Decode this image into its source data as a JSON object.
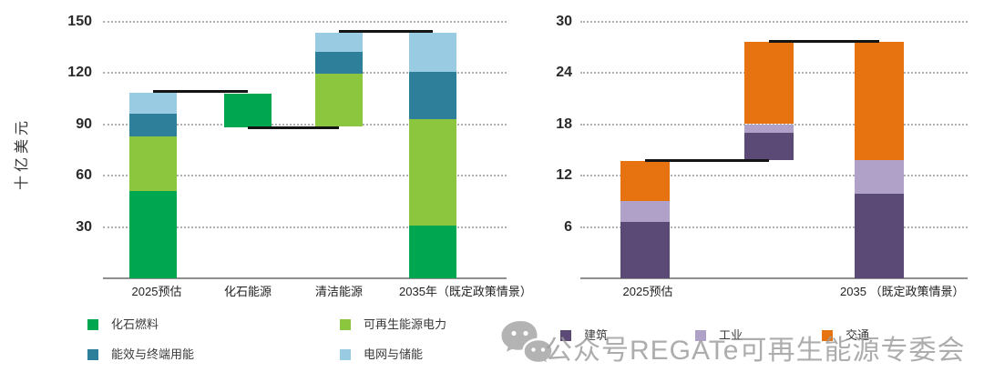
{
  "page": {
    "background": "#ffffff"
  },
  "watermark": {
    "icon": "wechat-icon",
    "text": "公众号REGATe可再生能源专委会",
    "color": "#9c9c9c"
  },
  "chart_data": [
    {
      "type": "bar",
      "subtype": "stacked-waterfall",
      "title": "",
      "ylabel": "十亿美元",
      "xlabel": "",
      "ylim": [
        0,
        150
      ],
      "yticks": [
        30,
        60,
        90,
        120,
        150
      ],
      "grid": "dotted horizontal gridlines",
      "legend_position": "below chart, 2 columns",
      "categories": [
        "2025预估",
        "化石能源",
        "清洁能源",
        "2035年（既定政策情景）"
      ],
      "series": [
        {
          "name": "化石燃料",
          "color": "#00A650"
        },
        {
          "name": "可再生能源电力",
          "color": "#8CC63F"
        },
        {
          "name": "能效与终端用能",
          "color": "#2E7F99"
        },
        {
          "name": "电网与储能",
          "color": "#99CCE3"
        }
      ],
      "bars": [
        {
          "category": "2025预估",
          "base": 0,
          "top": 108.5,
          "segments": [
            {
              "series": "化石燃料",
              "value": 51
            },
            {
              "series": "可再生能源电力",
              "value": 32
            },
            {
              "series": "能效与终端用能",
              "value": 13
            },
            {
              "series": "电网与储能",
              "value": 12.5
            }
          ]
        },
        {
          "category": "化石能源",
          "base": 88,
          "top": 108,
          "segments": [
            {
              "series": "化石燃料",
              "value": 20
            }
          ]
        },
        {
          "category": "清洁能源",
          "base": 88.5,
          "top": 143.5,
          "segments": [
            {
              "series": "可再生能源电力",
              "value": 31
            },
            {
              "series": "能效与终端用能",
              "value": 12.5
            },
            {
              "series": "电网与储能",
              "value": 11.5
            }
          ]
        },
        {
          "category": "2035年（既定政策情景）",
          "base": 0,
          "top": 143.5,
          "segments": [
            {
              "series": "化石燃料",
              "value": 31
            },
            {
              "series": "可再生能源电力",
              "value": 62
            },
            {
              "series": "能效与终端用能",
              "value": 27.5
            },
            {
              "series": "电网与储能",
              "value": 23
            }
          ]
        }
      ],
      "connectors": [
        {
          "value": 109,
          "from_bar": 0,
          "to_bar": 1
        },
        {
          "value": 88,
          "from_bar": 1,
          "to_bar": 2
        },
        {
          "value": 144,
          "from_bar": 2,
          "to_bar": 3
        }
      ],
      "legend": [
        {
          "label": "化石燃料",
          "color": "#00A650"
        },
        {
          "label": "可再生能源电力",
          "color": "#8CC63F"
        },
        {
          "label": "能效与终端用能",
          "color": "#2E7F99"
        },
        {
          "label": "电网与储能",
          "color": "#99CCE3"
        }
      ]
    },
    {
      "type": "bar",
      "subtype": "stacked-waterfall",
      "title": "",
      "ylabel": "",
      "xlabel": "",
      "ylim": [
        0,
        30
      ],
      "yticks": [
        6,
        12,
        18,
        24,
        30
      ],
      "grid": "dotted horizontal gridlines",
      "legend_position": "below chart, single row",
      "categories": [
        "2025预估",
        "",
        "2035 （既定政策情景）"
      ],
      "series": [
        {
          "name": "建筑",
          "color": "#5C4A76"
        },
        {
          "name": "工业",
          "color": "#B0A1C8"
        },
        {
          "name": "交通",
          "color": "#E6730F"
        }
      ],
      "bars": [
        {
          "category": "2025预估",
          "base": 0,
          "top": 13.7,
          "segments": [
            {
              "series": "建筑",
              "value": 6.6
            },
            {
              "series": "工业",
              "value": 2.4
            },
            {
              "series": "交通",
              "value": 4.7
            }
          ]
        },
        {
          "category": "",
          "base": 13.8,
          "top": 27.6,
          "segments": [
            {
              "series": "建筑",
              "value": 3.2
            },
            {
              "series": "工业",
              "value": 1.0
            },
            {
              "series": "交通",
              "value": 9.6
            }
          ]
        },
        {
          "category": "2035 （既定政策情景）",
          "base": 0,
          "top": 27.6,
          "segments": [
            {
              "series": "建筑",
              "value": 9.9
            },
            {
              "series": "工业",
              "value": 3.9
            },
            {
              "series": "交通",
              "value": 13.8
            }
          ]
        }
      ],
      "connectors": [
        {
          "value": 13.8,
          "from_bar": 0,
          "to_bar": 1
        },
        {
          "value": 27.7,
          "from_bar": 1,
          "to_bar": 2
        }
      ],
      "legend": [
        {
          "label": "建筑",
          "color": "#5C4A76"
        },
        {
          "label": "工业",
          "color": "#B0A1C8"
        },
        {
          "label": "交通",
          "color": "#E6730F"
        }
      ]
    }
  ]
}
